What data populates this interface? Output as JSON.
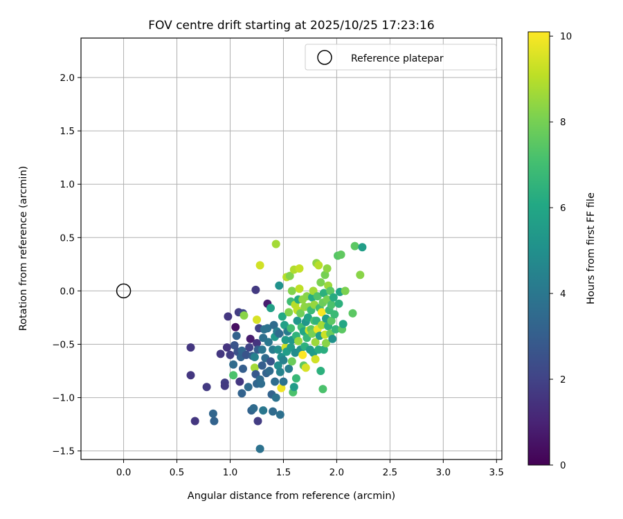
{
  "chart_data": {
    "type": "scatter",
    "title": "FOV centre drift starting at 2025/10/25 17:23:16",
    "xlabel": "Angular distance from reference (arcmin)",
    "ylabel": "Rotation from reference (arcmin)",
    "xlim": [
      -0.4,
      3.55
    ],
    "ylim": [
      -1.58,
      2.37
    ],
    "xticks": [
      0.0,
      0.5,
      1.0,
      1.5,
      2.0,
      2.5,
      3.0,
      3.5
    ],
    "xtick_labels": [
      "0.0",
      "0.5",
      "1.0",
      "1.5",
      "2.0",
      "2.5",
      "3.0",
      "3.5"
    ],
    "yticks": [
      -1.5,
      -1.0,
      -0.5,
      0.0,
      0.5,
      1.0,
      1.5,
      2.0
    ],
    "ytick_labels": [
      "−1.5",
      "−1.0",
      "−0.5",
      "0.0",
      "0.5",
      "1.0",
      "1.5",
      "2.0"
    ],
    "grid": true,
    "legend": {
      "position": "top-right",
      "entries": [
        "Reference platepar"
      ]
    },
    "reference_point": {
      "x": 0.0,
      "y": 0.0
    },
    "colorbar": {
      "label": "Hours from first FF file",
      "min": 0,
      "max": 10.1,
      "ticks": [
        0,
        2,
        4,
        6,
        8,
        10
      ],
      "tick_labels": [
        "0",
        "2",
        "4",
        "6",
        "8",
        "10"
      ],
      "colormap": "viridis"
    },
    "points": [
      [
        0.63,
        -0.53,
        1.6
      ],
      [
        0.63,
        -0.79,
        1.6
      ],
      [
        0.67,
        -1.22,
        1.6
      ],
      [
        0.78,
        -0.9,
        1.7
      ],
      [
        0.84,
        -1.15,
        3.3
      ],
      [
        0.85,
        -1.22,
        3.2
      ],
      [
        0.91,
        -0.59,
        1.6
      ],
      [
        0.95,
        -0.86,
        1.8
      ],
      [
        0.95,
        -0.89,
        1.7
      ],
      [
        0.97,
        -0.53,
        1.5
      ],
      [
        0.98,
        -0.24,
        1.6
      ],
      [
        1.0,
        -0.6,
        1.8
      ],
      [
        1.03,
        -0.69,
        3.5
      ],
      [
        1.03,
        -0.79,
        7.2
      ],
      [
        1.04,
        -0.51,
        2.6
      ],
      [
        1.05,
        -0.34,
        0.4
      ],
      [
        1.06,
        -0.42,
        3.2
      ],
      [
        1.07,
        -0.57,
        2.5
      ],
      [
        1.08,
        -0.2,
        1.8
      ],
      [
        1.09,
        -0.85,
        1.6
      ],
      [
        1.1,
        -0.62,
        3.2
      ],
      [
        1.11,
        -0.96,
        3.2
      ],
      [
        1.11,
        -0.56,
        3.3
      ],
      [
        1.12,
        -0.21,
        2.2
      ],
      [
        1.12,
        -0.73,
        3.0
      ],
      [
        1.13,
        -0.23,
        8.3
      ],
      [
        1.15,
        -0.6,
        2.6
      ],
      [
        1.17,
        -0.9,
        3.5
      ],
      [
        1.18,
        -0.53,
        2.0
      ],
      [
        1.19,
        -0.45,
        0.8
      ],
      [
        1.2,
        -1.12,
        3.2
      ],
      [
        1.21,
        -0.61,
        3.0
      ],
      [
        1.22,
        -1.1,
        3.5
      ],
      [
        1.23,
        -0.62,
        4.4
      ],
      [
        1.23,
        -0.72,
        8.7
      ],
      [
        1.24,
        -0.78,
        2.8
      ],
      [
        1.24,
        0.01,
        1.7
      ],
      [
        1.25,
        -0.27,
        9.5
      ],
      [
        1.25,
        -0.49,
        1.5
      ],
      [
        1.25,
        -0.87,
        3.3
      ],
      [
        1.26,
        -1.22,
        1.8
      ],
      [
        1.26,
        -0.55,
        3.0
      ],
      [
        1.27,
        -0.35,
        2.0
      ],
      [
        1.28,
        -1.48,
        3.8
      ],
      [
        1.28,
        -0.83,
        3.5
      ],
      [
        1.28,
        0.24,
        9.4
      ],
      [
        1.29,
        -0.87,
        3.6
      ],
      [
        1.3,
        -0.55,
        3.9
      ],
      [
        1.3,
        -0.7,
        3.0
      ],
      [
        1.31,
        -0.44,
        3.7
      ],
      [
        1.31,
        -1.12,
        4.0
      ],
      [
        1.32,
        -0.36,
        3.8
      ],
      [
        1.33,
        -0.63,
        3.5
      ],
      [
        1.34,
        -0.77,
        3.2
      ],
      [
        1.35,
        -0.12,
        0.8
      ],
      [
        1.35,
        -0.35,
        3.8
      ],
      [
        1.36,
        -0.48,
        4.0
      ],
      [
        1.37,
        -0.75,
        3.5
      ],
      [
        1.38,
        -0.16,
        5.7
      ],
      [
        1.38,
        -0.66,
        2.6
      ],
      [
        1.39,
        -0.97,
        3.2
      ],
      [
        1.4,
        -1.13,
        3.5
      ],
      [
        1.4,
        -0.55,
        4.2
      ],
      [
        1.41,
        -0.32,
        3.5
      ],
      [
        1.42,
        -0.43,
        5.4
      ],
      [
        1.42,
        -0.85,
        3.6
      ],
      [
        1.43,
        -1.0,
        3.8
      ],
      [
        1.43,
        0.44,
        8.7
      ],
      [
        1.44,
        -0.38,
        4.2
      ],
      [
        1.45,
        -0.7,
        4.9
      ],
      [
        1.45,
        -0.55,
        4.9
      ],
      [
        1.46,
        -0.4,
        3.5
      ],
      [
        1.46,
        0.05,
        5.1
      ],
      [
        1.47,
        -1.16,
        3.7
      ],
      [
        1.47,
        -0.76,
        4.5
      ],
      [
        1.48,
        -0.91,
        9.9
      ],
      [
        1.48,
        -0.62,
        5.0
      ],
      [
        1.49,
        -0.24,
        6.1
      ],
      [
        1.5,
        -0.85,
        3.8
      ],
      [
        1.5,
        -0.65,
        4.4
      ],
      [
        1.51,
        -0.32,
        5.7
      ],
      [
        1.52,
        -0.53,
        9.4
      ],
      [
        1.52,
        -0.46,
        5.5
      ],
      [
        1.53,
        0.13,
        9.0
      ],
      [
        1.53,
        -0.57,
        5.6
      ],
      [
        1.54,
        -0.38,
        4.2
      ],
      [
        1.55,
        -0.2,
        8.2
      ],
      [
        1.55,
        -0.73,
        4.3
      ],
      [
        1.56,
        0.14,
        8.2
      ],
      [
        1.57,
        -0.53,
        5.5
      ],
      [
        1.57,
        -0.1,
        6.9
      ],
      [
        1.57,
        -0.35,
        7.0
      ],
      [
        1.58,
        -0.46,
        5.3
      ],
      [
        1.58,
        0.0,
        8.2
      ],
      [
        1.58,
        -0.66,
        7.8
      ],
      [
        1.59,
        -0.95,
        7.2
      ],
      [
        1.6,
        0.2,
        8.9
      ],
      [
        1.6,
        -0.9,
        5.5
      ],
      [
        1.61,
        -0.13,
        9.0
      ],
      [
        1.61,
        -0.58,
        4.8
      ],
      [
        1.62,
        -0.42,
        6.5
      ],
      [
        1.62,
        -0.82,
        6.7
      ],
      [
        1.63,
        -0.18,
        9.1
      ],
      [
        1.63,
        -0.28,
        5.3
      ],
      [
        1.64,
        -0.08,
        6.2
      ],
      [
        1.64,
        -0.47,
        8.5
      ],
      [
        1.65,
        0.21,
        9.2
      ],
      [
        1.65,
        0.02,
        9.1
      ],
      [
        1.66,
        -0.55,
        5.0
      ],
      [
        1.66,
        -0.21,
        7.9
      ],
      [
        1.67,
        -0.34,
        7.0
      ],
      [
        1.68,
        -0.6,
        10.1
      ],
      [
        1.68,
        -0.08,
        8.4
      ],
      [
        1.69,
        -0.7,
        7.6
      ],
      [
        1.69,
        -0.38,
        6.0
      ],
      [
        1.7,
        -0.52,
        6.4
      ],
      [
        1.7,
        -0.15,
        8.4
      ],
      [
        1.71,
        -0.29,
        5.3
      ],
      [
        1.71,
        -0.72,
        9.5
      ],
      [
        1.72,
        -0.05,
        8.3
      ],
      [
        1.72,
        -0.44,
        6.7
      ],
      [
        1.73,
        -0.25,
        5.8
      ],
      [
        1.74,
        -0.15,
        8.3
      ],
      [
        1.74,
        -0.37,
        9.3
      ],
      [
        1.75,
        -0.55,
        5.5
      ],
      [
        1.76,
        -0.18,
        6.8
      ],
      [
        1.76,
        -0.36,
        7.6
      ],
      [
        1.77,
        -0.4,
        8.0
      ],
      [
        1.77,
        -0.06,
        6.2
      ],
      [
        1.78,
        0.0,
        8.7
      ],
      [
        1.78,
        -0.58,
        5.5
      ],
      [
        1.79,
        -0.28,
        7.2
      ],
      [
        1.79,
        -0.13,
        8.5
      ],
      [
        1.8,
        -0.48,
        8.6
      ],
      [
        1.8,
        -0.64,
        9.4
      ],
      [
        1.81,
        0.26,
        8.4
      ],
      [
        1.81,
        -0.28,
        6.5
      ],
      [
        1.82,
        -0.36,
        9.8
      ],
      [
        1.82,
        -0.05,
        7.3
      ],
      [
        1.83,
        0.24,
        9.0
      ],
      [
        1.83,
        -0.55,
        6.2
      ],
      [
        1.84,
        -0.16,
        7.0
      ],
      [
        1.84,
        -0.42,
        5.6
      ],
      [
        1.85,
        0.08,
        8.1
      ],
      [
        1.85,
        -0.75,
        6.4
      ],
      [
        1.86,
        -0.32,
        8.7
      ],
      [
        1.86,
        -0.2,
        10.0
      ],
      [
        1.87,
        -0.11,
        7.8
      ],
      [
        1.87,
        -0.92,
        7.2
      ],
      [
        1.88,
        -0.55,
        6.3
      ],
      [
        1.88,
        -0.02,
        6.4
      ],
      [
        1.89,
        0.15,
        8.0
      ],
      [
        1.89,
        -0.41,
        9.3
      ],
      [
        1.9,
        -0.26,
        5.6
      ],
      [
        1.9,
        -0.49,
        8.3
      ],
      [
        1.91,
        0.21,
        8.4
      ],
      [
        1.91,
        -0.08,
        8.0
      ],
      [
        1.92,
        -0.33,
        6.4
      ],
      [
        1.92,
        0.05,
        8.6
      ],
      [
        1.93,
        -0.18,
        6.8
      ],
      [
        1.94,
        -0.4,
        7.8
      ],
      [
        1.94,
        0.0,
        7.5
      ],
      [
        1.95,
        -0.28,
        7.5
      ],
      [
        1.95,
        -0.13,
        7.2
      ],
      [
        1.96,
        -0.45,
        5.1
      ],
      [
        1.97,
        -0.06,
        6.2
      ],
      [
        1.98,
        -0.22,
        6.8
      ],
      [
        1.99,
        -0.36,
        6.6
      ],
      [
        2.01,
        0.33,
        7.4
      ],
      [
        2.02,
        -0.12,
        6.4
      ],
      [
        2.03,
        -0.01,
        5.9
      ],
      [
        2.04,
        0.34,
        7.6
      ],
      [
        2.05,
        -0.36,
        7.5
      ],
      [
        2.06,
        -0.31,
        6.0
      ],
      [
        2.08,
        0.0,
        8.1
      ],
      [
        2.15,
        -0.21,
        7.5
      ],
      [
        2.17,
        0.42,
        7.5
      ],
      [
        2.22,
        0.15,
        8.3
      ],
      [
        2.24,
        0.41,
        5.6
      ]
    ]
  }
}
